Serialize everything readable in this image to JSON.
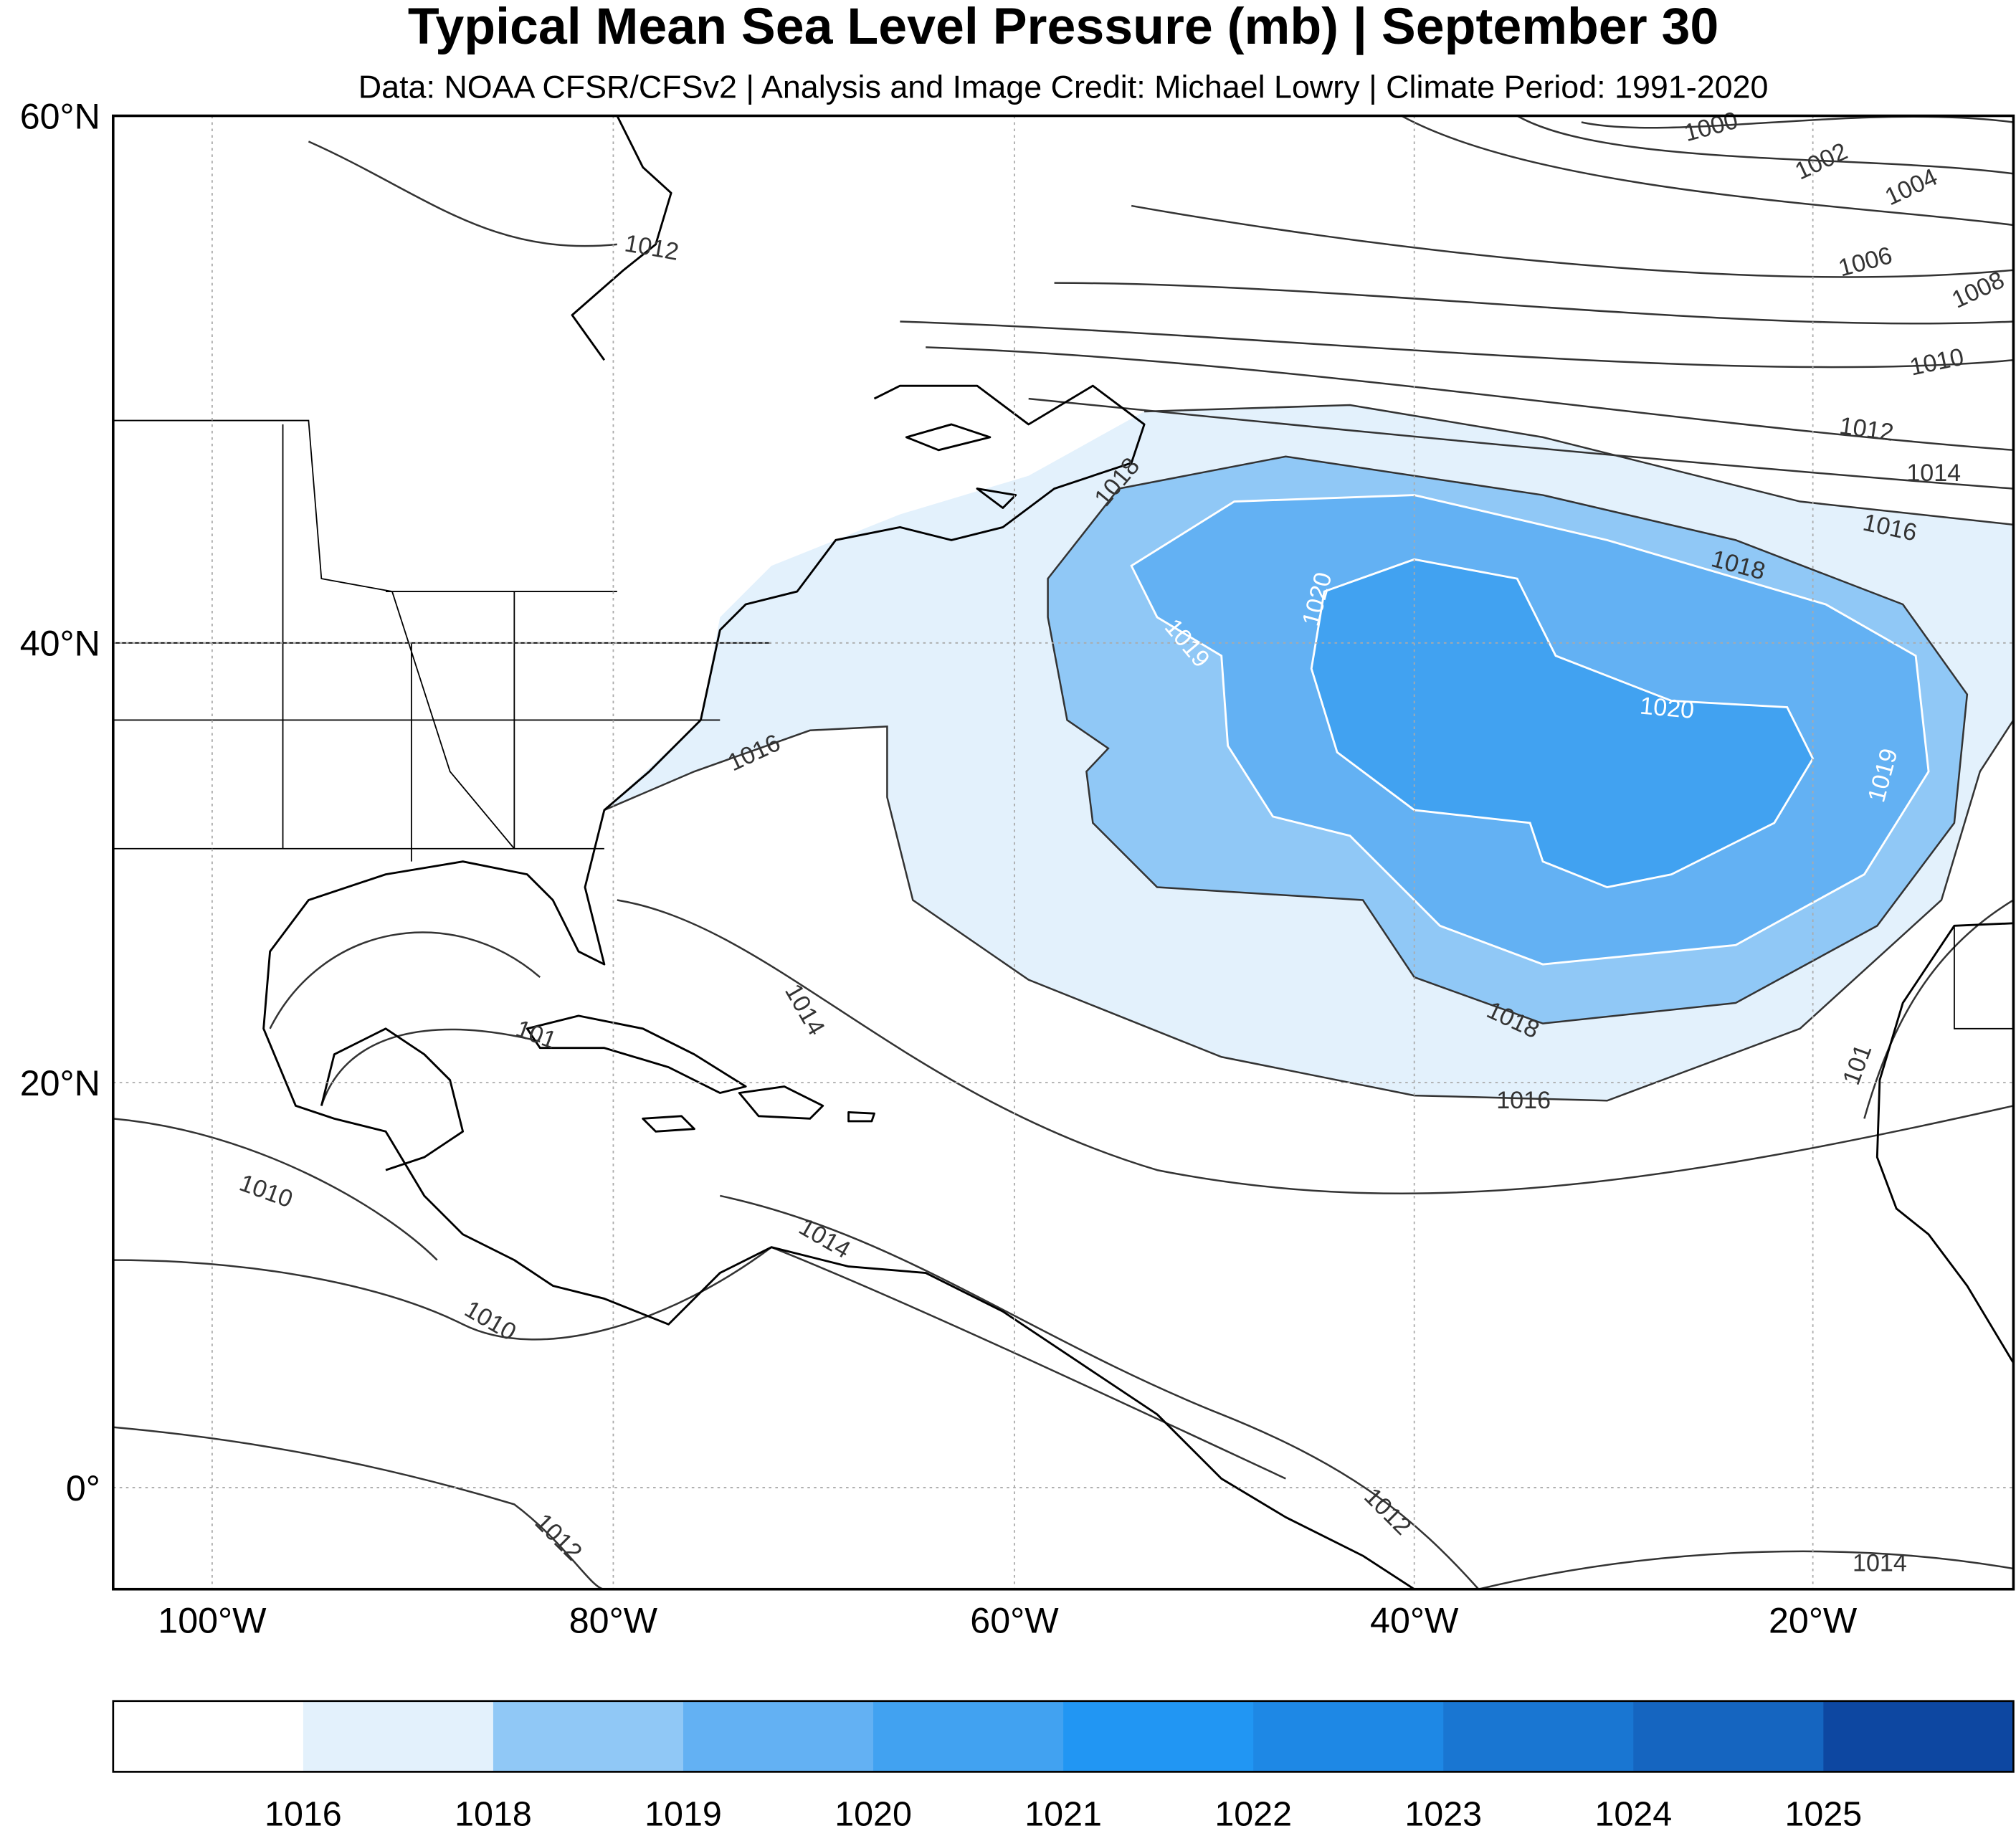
{
  "title": "Typical Mean Sea Level Pressure (mb) | September 30",
  "subtitle": "Data: NOAA CFSR/CFSv2 | Analysis and Image Credit: Michael Lowry | Climate Period: 1991-2020",
  "map": {
    "lat_ticks": [
      "60°N",
      "40°N",
      "20°N",
      "0°"
    ],
    "lon_ticks": [
      "100°W",
      "80°W",
      "60°W",
      "40°W",
      "20°W"
    ],
    "contour_labels": [
      "1000",
      "1002",
      "1004",
      "1006",
      "1008",
      "1010",
      "1012",
      "1014",
      "1016",
      "1018",
      "1018",
      "1019",
      "1020",
      "1020",
      "1019",
      "1018",
      "1016",
      "1014",
      "1016",
      "1012",
      "1010",
      "1010",
      "1014",
      "1012",
      "1012",
      "1014",
      "101",
      "101"
    ]
  },
  "colorbar": {
    "labels": [
      "1016",
      "1018",
      "1019",
      "1020",
      "1021",
      "1022",
      "1023",
      "1024",
      "1025"
    ],
    "colors": [
      "#ffffff",
      "#e3f1fc",
      "#90c8f6",
      "#63b1f3",
      "#41a2f1",
      "#2196f3",
      "#1e88e5",
      "#1976d2",
      "#1565c0",
      "#0d47a1"
    ]
  }
}
